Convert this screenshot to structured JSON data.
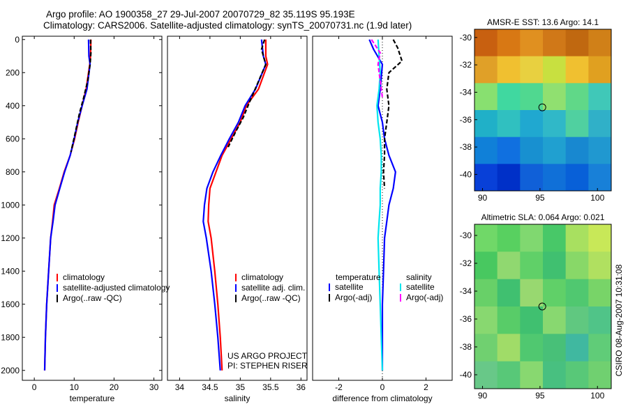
{
  "title": {
    "line1": "Argo profile: AO 1900358_27 29-Jul-2007 20070729_82 35.119S 95.193E",
    "line2": "Climatology: CARS2006. Satellite-adjusted climatology: synTS_20070731.nc (1.9d later)"
  },
  "side_label": "CSIRO 08-Aug-2007 10:31:08",
  "colors": {
    "climatology": "#ff0000",
    "satellite": "#0000ff",
    "argo": "#000000",
    "sat_salinity": "#00e5ee",
    "argo_salinity": "#ff00ff"
  },
  "chart_data": [
    {
      "id": "temperature",
      "type": "line",
      "xlabel": "temperature",
      "ylabel": "",
      "xlim": [
        -3,
        32
      ],
      "ylim": [
        2060,
        -20
      ],
      "y_reversed": true,
      "xticks": [
        0,
        10,
        20,
        30
      ],
      "xtick_labels": [
        "0",
        "10",
        "20",
        "30"
      ],
      "yticks": [
        0,
        200,
        400,
        600,
        800,
        1000,
        1200,
        1400,
        1600,
        1800,
        2000
      ],
      "ytick_labels": [
        "0",
        "200",
        "400",
        "600",
        "800",
        "1000",
        "1200",
        "1400",
        "1600",
        "1800",
        "2000"
      ],
      "legend": {
        "entries": [
          {
            "label": "climatology",
            "color": "#ff0000"
          },
          {
            "label": "satellite-adjusted climatology",
            "color": "#0000ff"
          },
          {
            "label": "Argo(..raw -QC)",
            "color": "#000000"
          }
        ]
      },
      "series": [
        {
          "name": "climatology",
          "color": "#ff0000",
          "dash": "",
          "x": [
            14.2,
            14.1,
            13.9,
            13.0,
            12.0,
            11.0,
            10.1,
            9.0,
            7.5,
            6.3,
            5.0,
            4.6,
            4.1,
            3.6,
            3.1,
            2.8,
            2.6
          ],
          "y": [
            0,
            100,
            150,
            300,
            400,
            500,
            600,
            700,
            800,
            900,
            1000,
            1100,
            1200,
            1400,
            1600,
            1800,
            2000
          ]
        },
        {
          "name": "satellite-adjusted climatology",
          "color": "#0000ff",
          "dash": "",
          "x": [
            13.6,
            13.7,
            14.0,
            13.2,
            12.0,
            10.9,
            10.0,
            9.0,
            7.6,
            6.4,
            5.2,
            4.7,
            4.1,
            3.6,
            3.1,
            2.8,
            2.6
          ],
          "y": [
            0,
            100,
            150,
            300,
            400,
            500,
            600,
            700,
            800,
            900,
            1000,
            1100,
            1200,
            1400,
            1600,
            1800,
            2000
          ]
        },
        {
          "name": "Argo(..raw -QC)",
          "color": "#000000",
          "dash": "6,3",
          "x": [
            14.1,
            14.2,
            14.0,
            13.4,
            12.4,
            11.3,
            10.3,
            9.2
          ],
          "y": [
            0,
            80,
            150,
            250,
            350,
            450,
            560,
            680
          ]
        }
      ]
    },
    {
      "id": "salinity",
      "type": "line",
      "xlabel": "salinity",
      "ylabel": "",
      "xlim": [
        33.8,
        36.1
      ],
      "ylim": [
        2060,
        -20
      ],
      "y_reversed": true,
      "xticks": [
        34,
        34.5,
        35,
        35.5,
        36
      ],
      "xtick_labels": [
        "34",
        "34.5",
        "35",
        "35.5",
        "36"
      ],
      "legend": {
        "entries": [
          {
            "label": "climatology",
            "color": "#ff0000"
          },
          {
            "label": "satellite adj. clim.",
            "color": "#0000ff"
          },
          {
            "label": "Argo(..raw -QC)",
            "color": "#000000"
          }
        ]
      },
      "annotation": [
        "US ARGO PROJECT",
        "PI: STEPHEN RISER"
      ],
      "series": [
        {
          "name": "climatology",
          "color": "#ff0000",
          "dash": "",
          "x": [
            35.42,
            35.42,
            35.45,
            35.3,
            35.1,
            35.0,
            34.85,
            34.7,
            34.6,
            34.5,
            34.48,
            34.47,
            34.52,
            34.58,
            34.63,
            34.67,
            34.7
          ],
          "y": [
            0,
            100,
            150,
            300,
            400,
            500,
            600,
            700,
            800,
            900,
            1000,
            1100,
            1200,
            1400,
            1600,
            1800,
            2000
          ]
        },
        {
          "name": "satellite adj. clim.",
          "color": "#0000ff",
          "dash": "",
          "x": [
            35.35,
            35.38,
            35.42,
            35.25,
            35.08,
            34.97,
            34.82,
            34.68,
            34.55,
            34.45,
            34.41,
            34.39,
            34.44,
            34.52,
            34.58,
            34.63,
            34.67
          ],
          "y": [
            0,
            100,
            150,
            300,
            400,
            500,
            600,
            700,
            800,
            900,
            1000,
            1100,
            1200,
            1400,
            1600,
            1800,
            2000
          ]
        },
        {
          "name": "Argo(..raw -QC)",
          "color": "#000000",
          "dash": "6,3",
          "x": [
            35.4,
            35.35,
            35.42,
            35.28,
            35.15,
            35.05,
            34.92,
            34.8
          ],
          "y": [
            0,
            60,
            150,
            270,
            380,
            470,
            560,
            650
          ]
        }
      ]
    },
    {
      "id": "difference",
      "type": "line",
      "xlabel": "difference from climatology",
      "ylabel": "",
      "xlim": [
        -3.2,
        3.2
      ],
      "ylim": [
        2060,
        -20
      ],
      "y_reversed": true,
      "xticks": [
        -2,
        0,
        2
      ],
      "xtick_labels": [
        "-2",
        "0",
        "2"
      ],
      "legend": {
        "headers": [
          "temperature",
          "salinity"
        ],
        "entries": [
          {
            "label": "satellite",
            "color": "#0000ff",
            "column": 0
          },
          {
            "label": "Argo(-adj)",
            "color": "#000000",
            "column": 0
          },
          {
            "label": "satellite",
            "color": "#00e5ee",
            "column": 1
          },
          {
            "label": "Argo(-adj)",
            "color": "#ff00ff",
            "column": 1
          }
        ]
      },
      "series": [
        {
          "name": "temperature satellite",
          "color": "#0000ff",
          "dash": "",
          "x": [
            -0.6,
            -0.4,
            0.0,
            -0.1,
            -0.2,
            0.0,
            0.1,
            0.3,
            0.6,
            0.5,
            0.3,
            0.2,
            0.1,
            0.05,
            0.0,
            0.0,
            0.0
          ],
          "y": [
            0,
            60,
            150,
            300,
            400,
            500,
            600,
            700,
            800,
            900,
            1000,
            1100,
            1200,
            1400,
            1600,
            1800,
            2000
          ]
        },
        {
          "name": "temperature Argo(-adj)",
          "color": "#000000",
          "dash": "6,3",
          "x": [
            0.5,
            0.7,
            0.9,
            0.3,
            0.2,
            0.3,
            0.2,
            0.1,
            0.1,
            0.05,
            0.1
          ],
          "y": [
            0,
            50,
            130,
            200,
            300,
            400,
            500,
            600,
            700,
            800,
            900
          ]
        },
        {
          "name": "salinity satellite",
          "color": "#00e5ee",
          "dash": "",
          "x": [
            -0.2,
            -0.15,
            -0.1,
            -0.15,
            -0.25,
            -0.2,
            -0.1,
            -0.05,
            -0.05,
            -0.1,
            -0.1,
            -0.15,
            -0.2,
            -0.15,
            -0.1,
            -0.05,
            0.0
          ],
          "y": [
            0,
            100,
            200,
            300,
            400,
            500,
            600,
            700,
            800,
            900,
            1000,
            1100,
            1200,
            1400,
            1600,
            1800,
            2000
          ]
        },
        {
          "name": "salinity Argo(-adj)",
          "color": "#ff00ff",
          "dash": "6,3",
          "x": [
            -0.5,
            -0.1,
            -0.2,
            -0.1,
            0.0
          ],
          "y": [
            0,
            80,
            150,
            250,
            350
          ]
        }
      ]
    },
    {
      "id": "sst_map",
      "type": "heatmap",
      "title": "AMSR-E SST: 13.6 Argo: 14.1",
      "xlim": [
        89.3,
        101.2
      ],
      "ylim": [
        -41.2,
        -29.4
      ],
      "xticks": [
        90,
        95,
        100
      ],
      "xtick_labels": [
        "90",
        "95",
        "100"
      ],
      "yticks": [
        -30,
        -32,
        -34,
        -36,
        -38,
        -40
      ],
      "ytick_labels": [
        "-30",
        "-32",
        "-34",
        "-36",
        "-38",
        "-40"
      ],
      "marker": {
        "x": 95.2,
        "y": -35.1
      },
      "field_rows_north_to_south": [
        "#c86010",
        "#d87814",
        "#e09020",
        "#d07818",
        "#c06810",
        "#d08018",
        "#e0a028",
        "#f0c030",
        "#e8d040",
        "#c8e040",
        "#f0c030",
        "#e0a020",
        "#88e070",
        "#40d8a0",
        "#50d890",
        "#90e070",
        "#60d888",
        "#40c8b8",
        "#20b0c8",
        "#30c0c0",
        "#20a8d0",
        "#30b8c8",
        "#50d0a0",
        "#30b0c8",
        "#1080d8",
        "#1070e0",
        "#1890d0",
        "#20a0d0",
        "#1888d0",
        "#2098d0",
        "#0840d8",
        "#0030c8",
        "#1060d8",
        "#1070d8",
        "#0860d8",
        "#1880d8"
      ]
    },
    {
      "id": "sla_map",
      "type": "heatmap",
      "title": "Altimetric SLA: 0.064 Argo: 0.021",
      "xlim": [
        89.3,
        101.2
      ],
      "ylim": [
        -41.0,
        -29.2
      ],
      "xticks": [
        90,
        95,
        100
      ],
      "xtick_labels": [
        "90",
        "95",
        "100"
      ],
      "yticks": [
        -30,
        -32,
        -34,
        -36,
        -38,
        -40
      ],
      "ytick_labels": [
        "-30",
        "-32",
        "-34",
        "-36",
        "-38",
        "-40"
      ],
      "marker": {
        "x": 95.2,
        "y": -35.1
      },
      "field_rows_north_to_south": [
        "#70d868",
        "#58d060",
        "#80d870",
        "#48c868",
        "#a8e060",
        "#c8e858",
        "#48c860",
        "#90d870",
        "#60d068",
        "#40c070",
        "#88d868",
        "#b0e060",
        "#68d068",
        "#40c070",
        "#98d870",
        "#60d068",
        "#50c870",
        "#78d468",
        "#88d870",
        "#58cc68",
        "#40c070",
        "#88d870",
        "#60c880",
        "#50c488",
        "#70d070",
        "#a0dc68",
        "#50c870",
        "#48c078",
        "#40b8a0",
        "#60cc78",
        "#68c888",
        "#58c878",
        "#88d870",
        "#48c080",
        "#58c878",
        "#70d070"
      ]
    }
  ]
}
